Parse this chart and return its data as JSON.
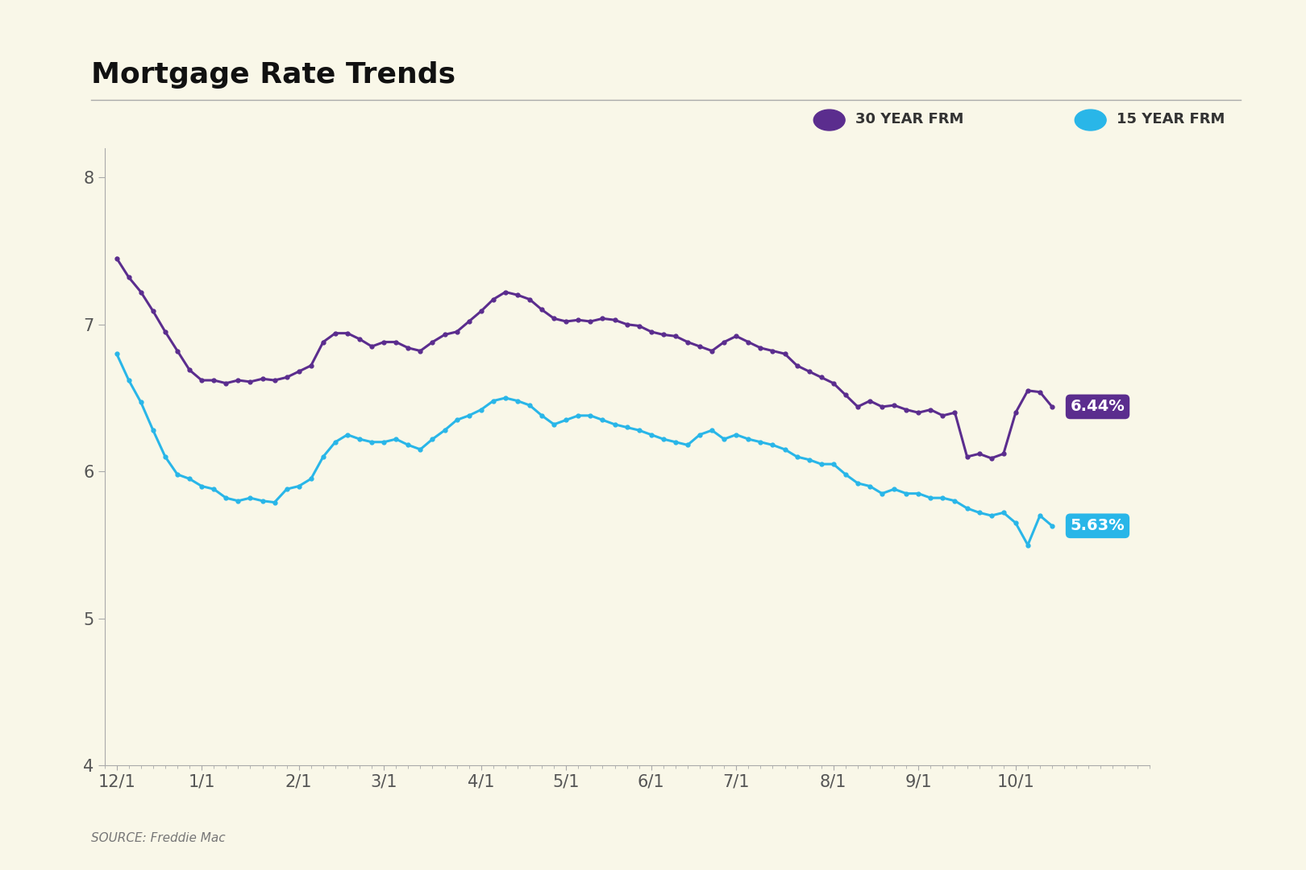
{
  "title": "Mortgage Rate Trends",
  "source": "SOURCE: Freddie Mac",
  "background_color": "#f9f7e8",
  "title_fontsize": 26,
  "title_fontweight": "bold",
  "legend_label_30": "30 YEAR FRM",
  "legend_label_15": "15 YEAR FRM",
  "color_30": "#5b2d8e",
  "color_15": "#29b6e8",
  "label_30": "6.44%",
  "label_15": "5.63%",
  "ylim": [
    4,
    8.2
  ],
  "yticks": [
    4,
    5,
    6,
    7,
    8
  ],
  "xtick_labels": [
    "12/1",
    "1/1",
    "2/1",
    "3/1",
    "4/1",
    "5/1",
    "6/1",
    "7/1",
    "8/1",
    "9/1",
    "10/1"
  ],
  "x_30": [
    0,
    1,
    2,
    3,
    4,
    5,
    6,
    7,
    8,
    9,
    10,
    11,
    12,
    13,
    14,
    15,
    16,
    17,
    18,
    19,
    20,
    21,
    22,
    23,
    24,
    25,
    26,
    27,
    28,
    29,
    30,
    31,
    32,
    33,
    34,
    35,
    36,
    37,
    38,
    39,
    40,
    41,
    42,
    43,
    44,
    45,
    46,
    47,
    48,
    49,
    50,
    51,
    52,
    53,
    54,
    55,
    56,
    57,
    58,
    59,
    60,
    61,
    62,
    63,
    64,
    65,
    66,
    67,
    68,
    69,
    70,
    71,
    72,
    73,
    74,
    75,
    76,
    77
  ],
  "y_30": [
    7.45,
    7.32,
    7.22,
    7.09,
    6.95,
    6.82,
    6.69,
    6.62,
    6.62,
    6.6,
    6.62,
    6.61,
    6.63,
    6.62,
    6.64,
    6.68,
    6.72,
    6.88,
    6.94,
    6.94,
    6.9,
    6.85,
    6.88,
    6.88,
    6.84,
    6.82,
    6.88,
    6.93,
    6.95,
    7.02,
    7.09,
    7.17,
    7.22,
    7.2,
    7.17,
    7.1,
    7.04,
    7.02,
    7.03,
    7.02,
    7.04,
    7.03,
    7.0,
    6.99,
    6.95,
    6.93,
    6.92,
    6.88,
    6.85,
    6.82,
    6.88,
    6.92,
    6.88,
    6.84,
    6.82,
    6.8,
    6.72,
    6.68,
    6.64,
    6.6,
    6.52,
    6.44,
    6.48,
    6.44,
    6.45,
    6.42,
    6.4,
    6.42,
    6.38,
    6.4,
    6.1,
    6.12,
    6.09,
    6.12,
    6.4,
    6.55,
    6.54,
    6.44
  ],
  "y_15": [
    6.8,
    6.62,
    6.47,
    6.28,
    6.1,
    5.98,
    5.95,
    5.9,
    5.88,
    5.82,
    5.8,
    5.82,
    5.8,
    5.79,
    5.88,
    5.9,
    5.95,
    6.1,
    6.2,
    6.25,
    6.22,
    6.2,
    6.2,
    6.22,
    6.18,
    6.15,
    6.22,
    6.28,
    6.35,
    6.38,
    6.42,
    6.48,
    6.5,
    6.48,
    6.45,
    6.38,
    6.32,
    6.35,
    6.38,
    6.38,
    6.35,
    6.32,
    6.3,
    6.28,
    6.25,
    6.22,
    6.2,
    6.18,
    6.25,
    6.28,
    6.22,
    6.25,
    6.22,
    6.2,
    6.18,
    6.15,
    6.1,
    6.08,
    6.05,
    6.05,
    5.98,
    5.92,
    5.9,
    5.85,
    5.88,
    5.85,
    5.85,
    5.82,
    5.82,
    5.8,
    5.75,
    5.72,
    5.7,
    5.72,
    5.65,
    5.5,
    5.7,
    5.63
  ]
}
